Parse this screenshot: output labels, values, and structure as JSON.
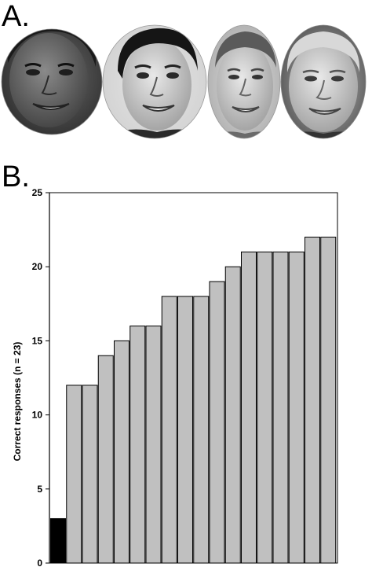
{
  "panels": {
    "a_label": "A.",
    "b_label": "B."
  },
  "faces": [
    {
      "name": "face-1"
    },
    {
      "name": "face-2"
    },
    {
      "name": "face-3"
    },
    {
      "name": "face-4"
    }
  ],
  "chart_data": {
    "type": "bar",
    "title": "",
    "xlabel": "",
    "ylabel": "Correct responses (n = 23)",
    "ylim": [
      0,
      25
    ],
    "yticks": [
      0,
      5,
      10,
      15,
      20,
      25
    ],
    "grid": false,
    "legend": "none",
    "values": [
      3,
      12,
      12,
      14,
      15,
      16,
      16,
      18,
      18,
      18,
      19,
      20,
      21,
      21,
      21,
      21,
      22,
      22
    ],
    "bar_colors": [
      "#000000",
      "#c0c0c0",
      "#c0c0c0",
      "#c0c0c0",
      "#c0c0c0",
      "#c0c0c0",
      "#c0c0c0",
      "#c0c0c0",
      "#c0c0c0",
      "#c0c0c0",
      "#c0c0c0",
      "#c0c0c0",
      "#c0c0c0",
      "#c0c0c0",
      "#c0c0c0",
      "#c0c0c0",
      "#c0c0c0",
      "#c0c0c0"
    ]
  }
}
